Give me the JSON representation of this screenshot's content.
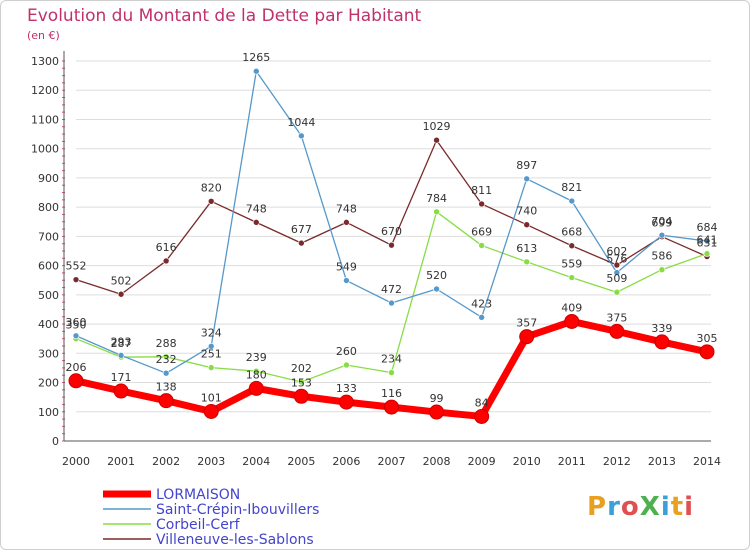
{
  "chart_data": {
    "type": "line",
    "title": "Evolution du Montant de la Dette par Habitant",
    "subtitle": "(en €)",
    "x": [
      "2000",
      "2001",
      "2002",
      "2003",
      "2004",
      "2005",
      "2006",
      "2007",
      "2008",
      "2009",
      "2010",
      "2011",
      "2012",
      "2013",
      "2014"
    ],
    "ylim": [
      0,
      1300
    ],
    "yticks": [
      0,
      100,
      200,
      300,
      400,
      500,
      600,
      700,
      800,
      900,
      1000,
      1100,
      1200,
      1300
    ],
    "grid": "horizontal",
    "legend_position": "bottom-left",
    "series": [
      {
        "name": "LORMAISON",
        "color": "#ff0000",
        "values": [
          206,
          171,
          138,
          101,
          180,
          153,
          133,
          116,
          99,
          84,
          357,
          409,
          375,
          339,
          305
        ],
        "labels": [
          "206",
          "171",
          "138",
          "101",
          "180",
          "153",
          "133",
          "116",
          "99",
          "84",
          "357",
          "409",
          "375",
          "339",
          "305"
        ]
      },
      {
        "name": "Saint-Crépin-Ibouvillers",
        "color": "#5599cc",
        "values": [
          360,
          293,
          232,
          324,
          1265,
          1044,
          549,
          472,
          520,
          423,
          897,
          821,
          576,
          704,
          684
        ],
        "labels": [
          "360",
          "293",
          "232",
          "324",
          "1265",
          "1044",
          "549",
          "472",
          "520",
          "423",
          "897",
          "821",
          "576",
          "704",
          "684"
        ]
      },
      {
        "name": "Corbeil-Cerf",
        "color": "#88dd44",
        "values": [
          350,
          287,
          288,
          251,
          239,
          202,
          260,
          234,
          784,
          669,
          613,
          559,
          509,
          586,
          641
        ],
        "labels": [
          "350",
          "287",
          "288",
          "251",
          "239",
          "202",
          "260",
          "234",
          "784",
          "669",
          "613",
          "559",
          "509",
          "586",
          "641"
        ]
      },
      {
        "name": "Villeneuve-les-Sablons",
        "color": "#7a2a2a",
        "values": [
          552,
          502,
          616,
          820,
          748,
          677,
          748,
          670,
          1029,
          811,
          740,
          668,
          602,
          699,
          631
        ],
        "labels": [
          "552",
          "502",
          "616",
          "820",
          "748",
          "677",
          "748",
          "670",
          "1029",
          "811",
          "740",
          "668",
          "602",
          "699",
          "631"
        ]
      }
    ]
  },
  "logo_text": "ProXiti",
  "colors": {
    "title": "#c0306a",
    "grid": "#dddddd",
    "legend_text": "#4444cc"
  }
}
